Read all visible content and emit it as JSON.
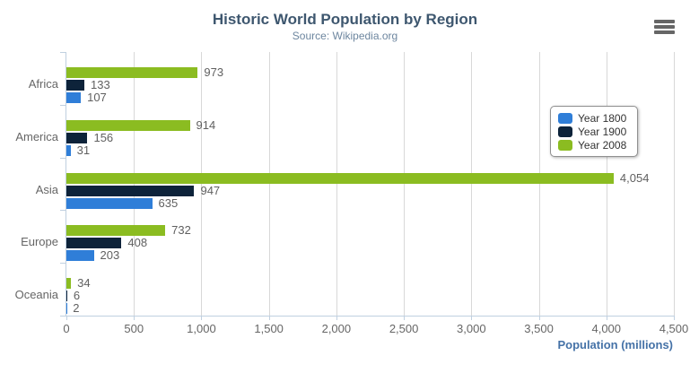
{
  "header": {
    "title": "Historic World Population by Region",
    "subtitle": "Source: Wikipedia.org"
  },
  "chart_data": {
    "type": "bar",
    "title": "Historic World Population by Region",
    "subtitle": "Source: Wikipedia.org",
    "categories": [
      "Africa",
      "America",
      "Asia",
      "Europe",
      "Oceania"
    ],
    "series": [
      {
        "name": "Year 1800",
        "color": "#2f7ed8",
        "values": [
          107,
          31,
          635,
          203,
          2
        ]
      },
      {
        "name": "Year 1900",
        "color": "#0d233a",
        "values": [
          133,
          156,
          947,
          408,
          6
        ]
      },
      {
        "name": "Year 2008",
        "color": "#8bbc21",
        "values": [
          973,
          914,
          4054,
          732,
          34
        ]
      }
    ],
    "xlabel": "Population (millions)",
    "ylabel": "",
    "xlim": [
      0,
      4500
    ],
    "x_ticks": [
      0,
      500,
      1000,
      1500,
      2000,
      2500,
      3000,
      3500,
      4000,
      4500
    ],
    "grid": true,
    "data_labels": true,
    "legend_position": "right",
    "series_display_order_top_to_bottom": [
      "Year 2008",
      "Year 1900",
      "Year 1800"
    ]
  },
  "legend": {
    "items": [
      {
        "label": "Year 1800",
        "color": "#2f7ed8"
      },
      {
        "label": "Year 1900",
        "color": "#0d233a"
      },
      {
        "label": "Year 2008",
        "color": "#8bbc21"
      }
    ]
  },
  "icons": {
    "menu": "hamburger-icon"
  },
  "colors": {
    "title": "#3E576F",
    "subtitle": "#6D869F",
    "axis_title": "#4572A7",
    "axis_labels": "#666666",
    "data_labels": "#606060",
    "gridline": "#D8D8D8",
    "axis_line": "#C0D0E0",
    "legend_border": "#909090",
    "menu_icon": "#666666",
    "background": "#ffffff"
  }
}
